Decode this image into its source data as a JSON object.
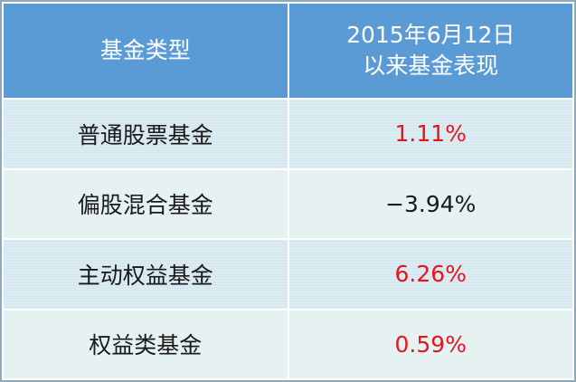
{
  "table": {
    "header": [
      "基金类型",
      [
        "2015年6月12日",
        "以来基金表现"
      ]
    ],
    "rows": [
      [
        "普通股票基金",
        "1.11%"
      ],
      [
        "偏股混合基金",
        "−3.94%"
      ],
      [
        "主动权益基金",
        "6.26%"
      ],
      [
        "权益类基金",
        "0.59%"
      ]
    ]
  }
}
